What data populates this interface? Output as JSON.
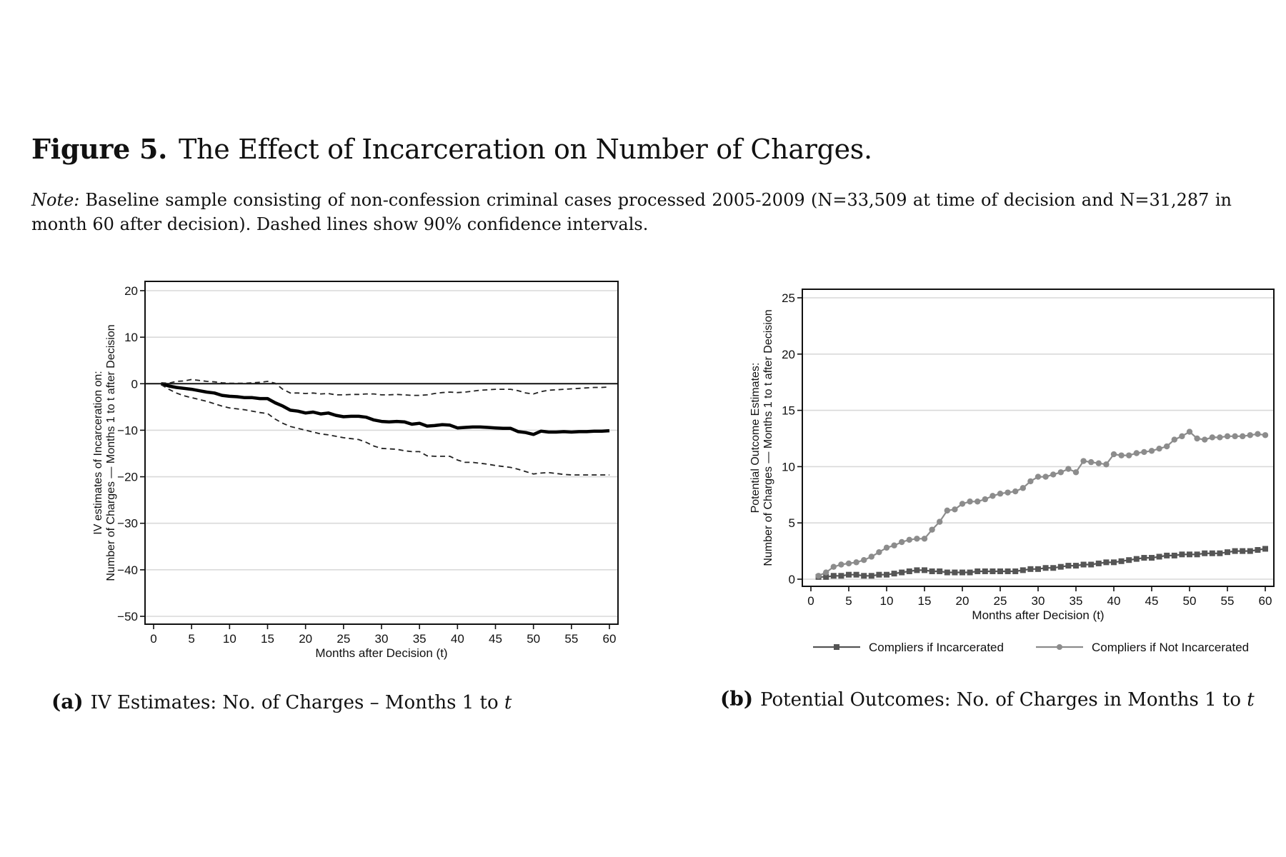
{
  "figure": {
    "label": "Figure 5.",
    "title": "The Effect of Incarceration on Number of Charges.",
    "note_label": "Note:",
    "note_text": "Baseline sample consisting of non-confession criminal cases processed 2005-2009 (N=33,509 at time of decision and N=31,287 in month 60 after decision). Dashed lines show 90% confidence intervals."
  },
  "captions": {
    "a_label": "(a)",
    "a_text": "IV Estimates: No. of Charges – Months 1 to",
    "a_var": "t",
    "b_label": "(b)",
    "b_text": "Potential Outcomes: No. of Charges in Months 1 to",
    "b_var": "t"
  },
  "chart_data": [
    {
      "type": "line",
      "xlabel": "Months after Decision (t)",
      "ylabel": [
        "IV estimates of Incarceration on:",
        "Number of Charges — Months 1 to t after Decision"
      ],
      "xlim": [
        0,
        60
      ],
      "ylim": [
        -50,
        20
      ],
      "xticks": [
        0,
        5,
        10,
        15,
        20,
        25,
        30,
        35,
        40,
        45,
        50,
        55,
        60
      ],
      "yticks": [
        -50,
        -40,
        -30,
        -20,
        -10,
        0,
        10,
        20
      ],
      "grid": true,
      "reference_line_y": 0,
      "x": [
        1,
        2,
        3,
        4,
        5,
        6,
        7,
        8,
        9,
        10,
        11,
        12,
        13,
        14,
        15,
        16,
        17,
        18,
        19,
        20,
        21,
        22,
        23,
        24,
        25,
        26,
        27,
        28,
        29,
        30,
        31,
        32,
        33,
        34,
        35,
        36,
        37,
        38,
        39,
        40,
        41,
        42,
        43,
        44,
        45,
        46,
        47,
        48,
        49,
        50,
        51,
        52,
        53,
        54,
        55,
        56,
        57,
        58,
        59,
        60
      ],
      "series": [
        {
          "style": "solid-thick",
          "values": [
            0,
            -0.5,
            -0.8,
            -1,
            -1.2,
            -1.5,
            -1.8,
            -2,
            -2.5,
            -2.7,
            -2.8,
            -3,
            -3,
            -3.2,
            -3.2,
            -4.1,
            -4.8,
            -5.7,
            -5.9,
            -6.3,
            -6.1,
            -6.5,
            -6.3,
            -6.8,
            -7.1,
            -7,
            -7,
            -7.2,
            -7.8,
            -8.1,
            -8.2,
            -8.1,
            -8.2,
            -8.7,
            -8.5,
            -9.1,
            -9,
            -8.8,
            -8.9,
            -9.5,
            -9.4,
            -9.3,
            -9.3,
            -9.4,
            -9.5,
            -9.6,
            -9.6,
            -10.3,
            -10.5,
            -10.9,
            -10.2,
            -10.4,
            -10.4,
            -10.3,
            -10.4,
            -10.3,
            -10.3,
            -10.2,
            -10.2,
            -10.1
          ]
        },
        {
          "style": "dashed",
          "values": [
            0.2,
            0.1,
            0.5,
            0.6,
            0.9,
            0.7,
            0.5,
            0.4,
            0.2,
            0.1,
            0.1,
            0.1,
            0.2,
            0.3,
            0.5,
            0.1,
            -1.2,
            -2,
            -2,
            -2.1,
            -2,
            -2.2,
            -2.1,
            -2.4,
            -2.4,
            -2.3,
            -2.3,
            -2.2,
            -2.2,
            -2.4,
            -2.4,
            -2.3,
            -2.4,
            -2.5,
            -2.5,
            -2.4,
            -2.1,
            -1.9,
            -1.8,
            -1.9,
            -1.8,
            -1.6,
            -1.4,
            -1.3,
            -1.2,
            -1.2,
            -1.2,
            -1.5,
            -2,
            -2.2,
            -1.7,
            -1.4,
            -1.3,
            -1.2,
            -1.1,
            -1,
            -0.9,
            -0.8,
            -0.8,
            -0.7
          ]
        },
        {
          "style": "dashed",
          "values": [
            -0.2,
            -1.2,
            -2,
            -2.6,
            -3,
            -3.4,
            -3.8,
            -4.3,
            -4.8,
            -5.2,
            -5.4,
            -5.6,
            -5.9,
            -6.2,
            -6.4,
            -7.6,
            -8.5,
            -9.2,
            -9.6,
            -10,
            -10.4,
            -10.8,
            -11,
            -11.3,
            -11.6,
            -11.8,
            -12,
            -12.6,
            -13.4,
            -13.9,
            -14,
            -14.1,
            -14.4,
            -14.6,
            -14.6,
            -15.5,
            -15.6,
            -15.6,
            -15.6,
            -16.4,
            -16.9,
            -16.9,
            -17.1,
            -17.3,
            -17.6,
            -17.8,
            -18,
            -18.4,
            -18.9,
            -19.4,
            -19.2,
            -19.1,
            -19.3,
            -19.5,
            -19.6,
            -19.6,
            -19.6,
            -19.6,
            -19.6,
            -19.6
          ]
        }
      ]
    },
    {
      "type": "line",
      "xlabel": "Months after Decision (t)",
      "ylabel": [
        "Potential Outcome Estimates:",
        "Number of Charges — Months 1 to t after Decision"
      ],
      "xlim": [
        0,
        60
      ],
      "ylim": [
        0,
        25
      ],
      "xticks": [
        0,
        5,
        10,
        15,
        20,
        25,
        30,
        35,
        40,
        45,
        50,
        55,
        60
      ],
      "yticks": [
        0,
        5,
        10,
        15,
        20,
        25
      ],
      "grid": true,
      "legend_position": "bottom",
      "x": [
        1,
        2,
        3,
        4,
        5,
        6,
        7,
        8,
        9,
        10,
        11,
        12,
        13,
        14,
        15,
        16,
        17,
        18,
        19,
        20,
        21,
        22,
        23,
        24,
        25,
        26,
        27,
        28,
        29,
        30,
        31,
        32,
        33,
        34,
        35,
        36,
        37,
        38,
        39,
        40,
        41,
        42,
        43,
        44,
        45,
        46,
        47,
        48,
        49,
        50,
        51,
        52,
        53,
        54,
        55,
        56,
        57,
        58,
        59,
        60
      ],
      "series": [
        {
          "name": "Compliers if Incarcerated",
          "color": "#555555",
          "marker": "square",
          "values": [
            0.2,
            0.2,
            0.3,
            0.3,
            0.4,
            0.4,
            0.3,
            0.3,
            0.4,
            0.4,
            0.5,
            0.6,
            0.7,
            0.8,
            0.8,
            0.7,
            0.7,
            0.6,
            0.6,
            0.6,
            0.6,
            0.7,
            0.7,
            0.7,
            0.7,
            0.7,
            0.7,
            0.8,
            0.9,
            0.9,
            1.0,
            1.0,
            1.1,
            1.2,
            1.2,
            1.3,
            1.3,
            1.4,
            1.5,
            1.5,
            1.6,
            1.7,
            1.8,
            1.9,
            1.9,
            2.0,
            2.1,
            2.1,
            2.2,
            2.2,
            2.2,
            2.3,
            2.3,
            2.3,
            2.4,
            2.5,
            2.5,
            2.5,
            2.6,
            2.7
          ]
        },
        {
          "name": "Compliers if Not Incarcerated",
          "color": "#8c8c8c",
          "marker": "circle",
          "values": [
            0.3,
            0.6,
            1.1,
            1.3,
            1.4,
            1.5,
            1.7,
            2.0,
            2.4,
            2.8,
            3.0,
            3.3,
            3.5,
            3.6,
            3.6,
            4.4,
            5.1,
            6.1,
            6.2,
            6.7,
            6.9,
            6.9,
            7.1,
            7.4,
            7.6,
            7.7,
            7.8,
            8.1,
            8.7,
            9.1,
            9.1,
            9.3,
            9.5,
            9.8,
            9.5,
            10.5,
            10.4,
            10.3,
            10.2,
            11.1,
            11.0,
            11.0,
            11.2,
            11.3,
            11.4,
            11.6,
            11.8,
            12.4,
            12.7,
            13.1,
            12.5,
            12.4,
            12.6,
            12.6,
            12.7,
            12.7,
            12.7,
            12.8,
            12.9,
            12.8
          ]
        }
      ]
    }
  ]
}
